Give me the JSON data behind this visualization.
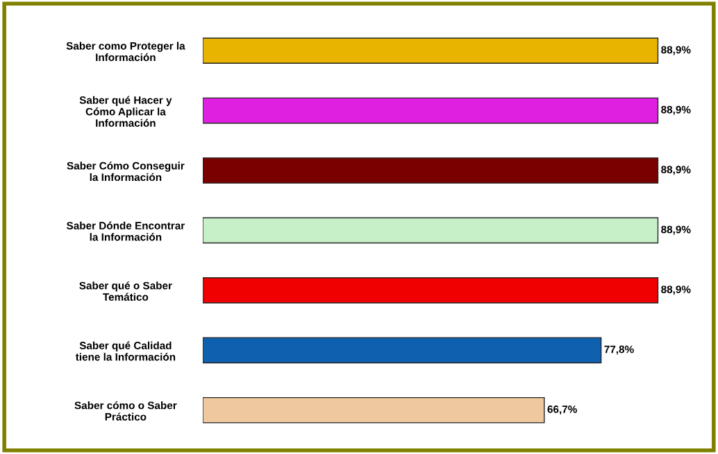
{
  "chart_data": {
    "type": "bar",
    "orientation": "horizontal",
    "categories": [
      "Saber como Proteger la\nInformación",
      "Saber qué Hacer y\nCómo Aplicar la\nInformación",
      "Saber Cómo Conseguir\nla Información",
      "Saber Dónde Encontrar\nla Información",
      "Saber qué o Saber\nTemático",
      "Saber qué Calidad\ntiene la Información",
      "Saber cómo o Saber\nPráctico"
    ],
    "values": [
      88.9,
      88.9,
      88.9,
      88.9,
      88.9,
      77.8,
      66.7
    ],
    "colors": [
      "#e8b400",
      "#e020e0",
      "#7a0000",
      "#c8f0c8",
      "#f00000",
      "#1060b0",
      "#f0c8a0"
    ],
    "value_labels": [
      "88,9%",
      "88,9%",
      "88,9%",
      "88,9%",
      "88,9%",
      "77,8%",
      "66,7%"
    ],
    "grid": false,
    "legend": false
  }
}
